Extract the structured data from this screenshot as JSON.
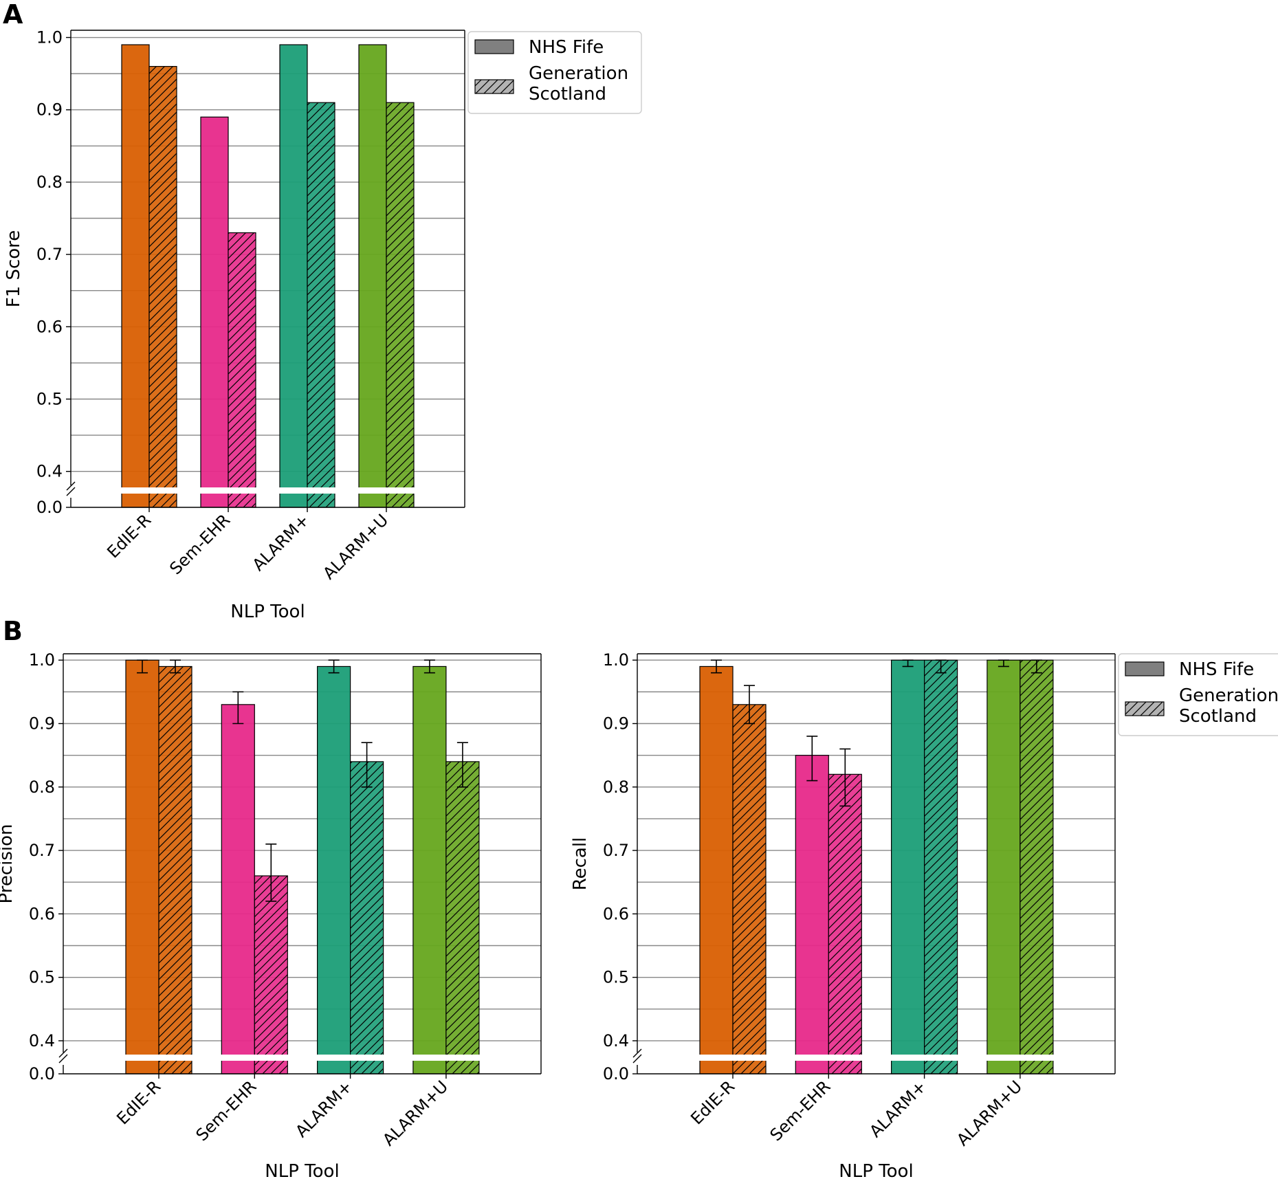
{
  "panels": [
    {
      "letter": "A"
    },
    {
      "letter": "B"
    }
  ],
  "legend": {
    "entries": [
      "NHS Fife",
      "Generation\nScotland"
    ]
  },
  "colors": {
    "EdIE-R": "#D95F02",
    "Sem-EHR": "#E7298A",
    "ALARM+": "#1B9E77",
    "ALARM+U": "#66A61E",
    "grid": "#888888",
    "break_marker": "#ffffff"
  },
  "chart_data": [
    {
      "type": "bar",
      "panel": "A",
      "categories": [
        "EdIE-R",
        "Sem-EHR",
        "ALARM+",
        "ALARM+U"
      ],
      "series": [
        {
          "name": "NHS Fife",
          "pattern": "solid",
          "values": [
            0.99,
            0.89,
            0.99,
            0.99
          ]
        },
        {
          "name": "Generation Scotland",
          "pattern": "hatched",
          "values": [
            0.96,
            0.73,
            0.91,
            0.91
          ]
        }
      ],
      "xlabel": "NLP Tool",
      "ylabel": "F1 Score",
      "ylim": [
        0.375,
        1.01
      ],
      "axis_break": true,
      "yticks": [
        "0.4",
        "0.5",
        "0.6",
        "0.7",
        "0.8",
        "0.9",
        "1.0"
      ],
      "ytick_values": [
        0.4,
        0.5,
        0.6,
        0.7,
        0.8,
        0.9,
        1.0
      ],
      "ytick_below_break": "0.0",
      "grid": "horizontal, every 0.05",
      "legend_position": "outside upper right"
    },
    {
      "type": "bar",
      "panel": "B",
      "categories": [
        "EdIE-R",
        "Sem-EHR",
        "ALARM+",
        "ALARM+U"
      ],
      "series": [
        {
          "name": "NHS Fife",
          "pattern": "solid",
          "values": [
            1.0,
            0.93,
            0.99,
            0.99
          ],
          "error_low": [
            0.98,
            0.9,
            0.98,
            0.98
          ],
          "error_high": [
            1.0,
            0.95,
            1.0,
            1.0
          ]
        },
        {
          "name": "Generation Scotland",
          "pattern": "hatched",
          "values": [
            0.99,
            0.66,
            0.84,
            0.84
          ],
          "error_low": [
            0.98,
            0.62,
            0.8,
            0.8
          ],
          "error_high": [
            1.0,
            0.71,
            0.87,
            0.87
          ]
        }
      ],
      "xlabel": "NLP Tool",
      "ylabel": "Precision",
      "ylim": [
        0.375,
        1.01
      ],
      "axis_break": true,
      "yticks": [
        "0.4",
        "0.5",
        "0.6",
        "0.7",
        "0.8",
        "0.9",
        "1.0"
      ],
      "ytick_values": [
        0.4,
        0.5,
        0.6,
        0.7,
        0.8,
        0.9,
        1.0
      ],
      "ytick_below_break": "0.0",
      "grid": "horizontal, every 0.05"
    },
    {
      "type": "bar",
      "panel": "B",
      "categories": [
        "EdIE-R",
        "Sem-EHR",
        "ALARM+",
        "ALARM+U"
      ],
      "series": [
        {
          "name": "NHS Fife",
          "pattern": "solid",
          "values": [
            0.99,
            0.85,
            1.0,
            1.0
          ],
          "error_low": [
            0.98,
            0.81,
            0.99,
            0.99
          ],
          "error_high": [
            1.0,
            0.88,
            1.0,
            1.0
          ]
        },
        {
          "name": "Generation Scotland",
          "pattern": "hatched",
          "values": [
            0.93,
            0.82,
            1.0,
            1.0
          ],
          "error_low": [
            0.9,
            0.77,
            0.98,
            0.98
          ],
          "error_high": [
            0.96,
            0.86,
            1.0,
            1.0
          ]
        }
      ],
      "xlabel": "NLP Tool",
      "ylabel": "Recall",
      "ylim": [
        0.375,
        1.01
      ],
      "axis_break": true,
      "yticks": [
        "0.4",
        "0.5",
        "0.6",
        "0.7",
        "0.8",
        "0.9",
        "1.0"
      ],
      "ytick_values": [
        0.4,
        0.5,
        0.6,
        0.7,
        0.8,
        0.9,
        1.0
      ],
      "ytick_below_break": "0.0",
      "grid": "horizontal, every 0.05",
      "legend_position": "outside upper right"
    }
  ]
}
